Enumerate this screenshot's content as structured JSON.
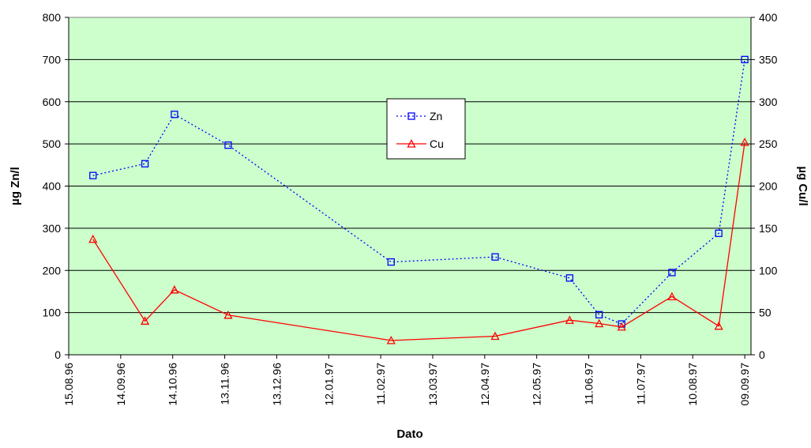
{
  "chart_data": {
    "type": "line",
    "title": "",
    "xlabel": "Dato",
    "ylabel_left": "µg Zn/l",
    "ylabel_right": "µg Cu/l",
    "x_ticks": [
      "15.08.96",
      "14.09.96",
      "14.10.96",
      "13.11.96",
      "13.12.96",
      "12.01.97",
      "11.02.97",
      "13.03.97",
      "12.04.97",
      "12.05.97",
      "11.06.97",
      "11.07.97",
      "10.08.97",
      "09.09.97"
    ],
    "y_left_ticks": [
      "0",
      "100",
      "200",
      "300",
      "400",
      "500",
      "600",
      "700",
      "800"
    ],
    "y_right_ticks": [
      "0",
      "50",
      "100",
      "150",
      "200",
      "250",
      "300",
      "350",
      "400"
    ],
    "ylim_left": [
      0,
      800
    ],
    "ylim_right": [
      0,
      400
    ],
    "grid": "horizontal",
    "plot_background": "#ccffcc",
    "legend_position": "top-center",
    "series": [
      {
        "name": "Zn",
        "axis": "left",
        "color": "#0000ff",
        "line_style": "dotted",
        "marker": "square",
        "x": [
          "29.08.96",
          "28.09.96",
          "15.10.96",
          "15.11.96",
          "17.02.97",
          "18.04.97",
          "31.05.97",
          "17.06.97",
          "30.06.97",
          "29.07.97",
          "25.08.97",
          "09.09.97"
        ],
        "y": [
          425,
          453,
          570,
          497,
          220,
          232,
          182,
          95,
          73,
          195,
          288,
          700
        ]
      },
      {
        "name": "Cu",
        "axis": "right",
        "color": "#ff0000",
        "line_style": "solid",
        "marker": "triangle",
        "x": [
          "29.08.96",
          "28.09.96",
          "15.10.96",
          "15.11.96",
          "17.02.97",
          "18.04.97",
          "31.05.97",
          "17.06.97",
          "30.06.97",
          "29.07.97",
          "25.08.97",
          "09.09.97"
        ],
        "y": [
          137,
          40,
          77,
          47,
          17,
          22,
          41,
          37,
          33,
          69,
          34,
          252
        ]
      }
    ]
  }
}
